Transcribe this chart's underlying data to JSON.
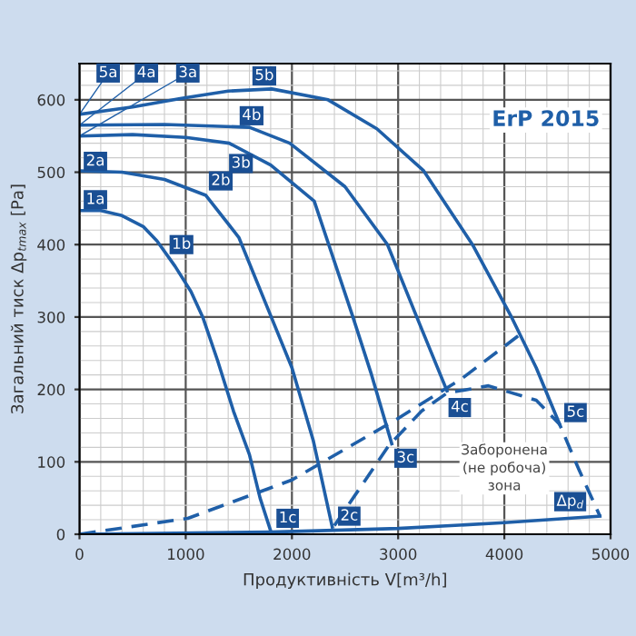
{
  "chart_data": {
    "type": "line",
    "xlabel": "Продуктивність V[m³/h]",
    "ylabel": "Загальний тиск Δp$_{tmax}$ [Pa]",
    "xlim": [
      0,
      5000
    ],
    "xticks": [
      0,
      1000,
      2000,
      3000,
      4000,
      5000
    ],
    "ylim": [
      0,
      650
    ],
    "yticks": [
      0,
      100,
      200,
      300,
      400,
      500,
      600
    ],
    "grid": true,
    "marker": "none",
    "series": [
      {
        "color": "#1f5fa8",
        "line_style": "solid",
        "x": [
          0,
          200,
          400,
          600,
          730,
          900,
          1050,
          1160,
          1300,
          1450,
          1600,
          1700,
          1810
        ],
        "values": [
          447,
          447,
          440,
          425,
          405,
          370,
          335,
          300,
          240,
          170,
          110,
          50,
          0
        ]
      },
      {
        "color": "#1f5fa8",
        "line_style": "solid",
        "x": [
          0,
          400,
          800,
          1190,
          1500,
          1800,
          2000,
          2200,
          2380
        ],
        "values": [
          502,
          500,
          490,
          468,
          410,
          302,
          230,
          130,
          10
        ]
      },
      {
        "color": "#1f5fa8",
        "line_style": "solid",
        "x": [
          0,
          500,
          1000,
          1410,
          1800,
          2210,
          2570,
          2750,
          2940
        ],
        "values": [
          550,
          552,
          548,
          540,
          510,
          460,
          302,
          220,
          125
        ]
      },
      {
        "color": "#1f5fa8",
        "line_style": "solid",
        "x": [
          0,
          800,
          1600,
          1980,
          2500,
          2900,
          3170,
          3460
        ],
        "values": [
          565,
          566,
          562,
          540,
          480,
          400,
          302,
          198
        ]
      },
      {
        "color": "#1f5fa8",
        "line_style": "solid",
        "x": [
          0,
          500,
          960,
          1400,
          1810,
          2340,
          2800,
          3240,
          3700,
          4060,
          4300,
          4520
        ],
        "values": [
          580,
          590,
          602,
          612,
          615,
          600,
          560,
          502,
          400,
          302,
          230,
          152
        ]
      },
      {
        "color": "#1f5fa8",
        "line_style": "dashed",
        "x": [
          0,
          1020,
          2000,
          3000,
          3600,
          4140
        ],
        "values": [
          0,
          22,
          75,
          160,
          215,
          275
        ]
      },
      {
        "color": "#1f5fa8",
        "line_style": "dashed",
        "x": [
          2400,
          2910,
          3220,
          3460,
          3850,
          4300,
          4520,
          4700,
          4900
        ],
        "values": [
          12,
          122,
          170,
          195,
          205,
          185,
          152,
          90,
          25
        ]
      },
      {
        "color": "#1f5fa8",
        "line_style": "solid",
        "x": [
          0,
          1800,
          3000,
          4000,
          4900
        ],
        "values": [
          0,
          3,
          8,
          16,
          25
        ]
      }
    ],
    "annotations": [
      {
        "text": "5a",
        "x": 270,
        "y": 637
      },
      {
        "text": "4a",
        "x": 630,
        "y": 637
      },
      {
        "text": "3a",
        "x": 1020,
        "y": 637
      },
      {
        "text": "5b",
        "x": 1740,
        "y": 633
      },
      {
        "text": "4b",
        "x": 1620,
        "y": 578
      },
      {
        "text": "3b",
        "x": 1520,
        "y": 512
      },
      {
        "text": "2a",
        "x": 150,
        "y": 515
      },
      {
        "text": "2b",
        "x": 1330,
        "y": 488
      },
      {
        "text": "1a",
        "x": 150,
        "y": 462
      },
      {
        "text": "1b",
        "x": 960,
        "y": 400
      },
      {
        "text": "1c",
        "x": 1960,
        "y": 22
      },
      {
        "text": "2c",
        "x": 2540,
        "y": 25
      },
      {
        "text": "3c",
        "x": 3070,
        "y": 105
      },
      {
        "text": "4c",
        "x": 3580,
        "y": 175
      },
      {
        "text": "5c",
        "x": 4670,
        "y": 168
      },
      {
        "text": "Δp$_{d}$",
        "x": 4620,
        "y": 45
      },
      "Заборонена\n(не робоча)\nзона",
      "ErP 2015"
    ]
  }
}
